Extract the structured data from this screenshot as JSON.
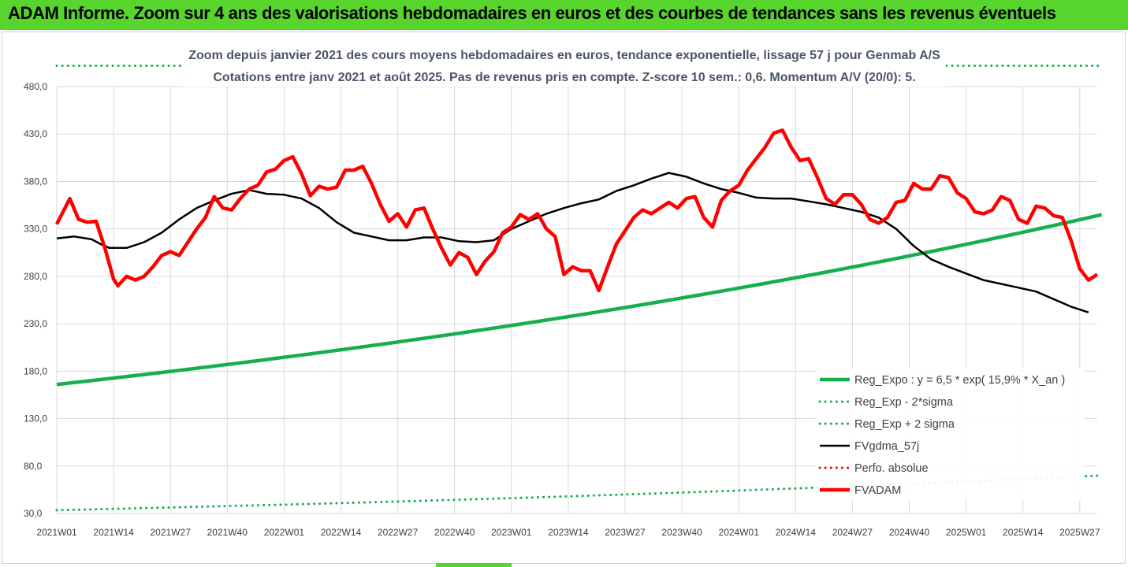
{
  "header": {
    "title": "ADAM Informe. Zoom sur 4 ans des valorisations hebdomadaires en euros et des courbes de tendances sans les revenus éventuels"
  },
  "colors": {
    "header_bg": "#58d52c",
    "series_price": "#ff0000",
    "series_smooth": "#000000",
    "series_reg": "#14b04c"
  },
  "chart_data": {
    "type": "line",
    "title_lines": [
      "Zoom depuis janvier 2021 des cours moyens hebdomadaires en euros, tendance exponentielle, lissage 57 j pour Genmab A/S",
      "Cotations entre janv 2021 et août 2025.  Pas de revenus pris en compte. Z-score 10 sem.: 0,6. Momentum A/V (20/0): 5."
    ],
    "x_ticks": [
      "2021W01",
      "2021W14",
      "2021W27",
      "2021W40",
      "2022W01",
      "2022W14",
      "2022W27",
      "2022W40",
      "2023W01",
      "2023W14",
      "2023W27",
      "2023W40",
      "2024W01",
      "2024W14",
      "2024W27",
      "2024W40",
      "2025W01",
      "2025W14",
      "2025W27"
    ],
    "y_ticks": [
      "30,0",
      "80,0",
      "130,0",
      "180,0",
      "230,0",
      "280,0",
      "330,0",
      "380,0",
      "430,0",
      "480,0"
    ],
    "ylim": [
      30,
      480
    ],
    "grid": true,
    "legend_position": "right",
    "series": [
      {
        "name": "Reg_Expo : y = 6,5 * exp( 15,9% * X_an )",
        "style": "solid-thick",
        "color": "#14b04c",
        "anchors": [
          [
            0,
            166
          ],
          [
            239,
            345
          ]
        ]
      },
      {
        "name": "Reg_Exp - 2*sigma",
        "style": "dotted",
        "color": "#14b04c",
        "anchors": [
          [
            0,
            33.5
          ],
          [
            239,
            70
          ]
        ]
      },
      {
        "name": "Reg_Exp + 2 sigma",
        "style": "dotted",
        "color": "#14b04c",
        "anchors": [
          [
            0,
            502
          ],
          [
            239,
            502
          ]
        ]
      },
      {
        "name": "FVgdma_57j",
        "style": "solid",
        "color": "#000000",
        "points": [
          [
            0,
            320
          ],
          [
            4,
            322
          ],
          [
            8,
            319
          ],
          [
            10,
            314
          ],
          [
            12,
            310
          ],
          [
            16,
            310
          ],
          [
            20,
            316
          ],
          [
            24,
            326
          ],
          [
            28,
            340
          ],
          [
            32,
            352
          ],
          [
            36,
            360
          ],
          [
            40,
            367
          ],
          [
            44,
            371
          ],
          [
            46,
            369
          ],
          [
            48,
            367
          ],
          [
            52,
            366
          ],
          [
            56,
            362
          ],
          [
            60,
            352
          ],
          [
            64,
            337
          ],
          [
            68,
            326
          ],
          [
            72,
            322
          ],
          [
            76,
            318
          ],
          [
            80,
            318
          ],
          [
            84,
            321
          ],
          [
            88,
            321
          ],
          [
            92,
            317
          ],
          [
            96,
            316
          ],
          [
            100,
            318
          ],
          [
            104,
            330
          ],
          [
            108,
            338
          ],
          [
            112,
            346
          ],
          [
            116,
            352
          ],
          [
            120,
            357
          ],
          [
            124,
            361
          ],
          [
            128,
            370
          ],
          [
            132,
            376
          ],
          [
            136,
            383
          ],
          [
            140,
            389
          ],
          [
            144,
            385
          ],
          [
            148,
            378
          ],
          [
            152,
            372
          ],
          [
            156,
            368
          ],
          [
            160,
            363
          ],
          [
            164,
            362
          ],
          [
            168,
            362
          ],
          [
            172,
            359
          ],
          [
            176,
            356
          ],
          [
            180,
            352
          ],
          [
            184,
            348
          ],
          [
            188,
            342
          ],
          [
            192,
            330
          ],
          [
            196,
            312
          ],
          [
            200,
            298
          ],
          [
            204,
            290
          ],
          [
            208,
            283
          ],
          [
            212,
            276
          ],
          [
            216,
            272
          ],
          [
            220,
            268
          ],
          [
            224,
            264
          ],
          [
            228,
            256
          ],
          [
            232,
            248
          ],
          [
            236,
            242
          ],
          [
            240,
            234
          ],
          [
            244,
            226
          ],
          [
            248,
            218
          ],
          [
            252,
            212
          ],
          [
            256,
            206
          ],
          [
            260,
            202
          ],
          [
            264,
            200
          ],
          [
            268,
            194
          ],
          [
            272,
            189
          ],
          [
            276,
            188
          ],
          [
            280,
            188
          ],
          [
            284,
            192
          ],
          [
            288,
            191
          ],
          [
            292,
            195
          ]
        ]
      },
      {
        "name": "Perfo. absolue",
        "style": "dotted",
        "color": "#ff0000",
        "points": []
      },
      {
        "name": "FVADAM",
        "style": "solid-thick",
        "color": "#ff0000",
        "points": [
          [
            0,
            335
          ],
          [
            3,
            362
          ],
          [
            5,
            340
          ],
          [
            7,
            337
          ],
          [
            9,
            338
          ],
          [
            11,
            310
          ],
          [
            13,
            277
          ],
          [
            14,
            270
          ],
          [
            16,
            280
          ],
          [
            18,
            276
          ],
          [
            20,
            280
          ],
          [
            22,
            290
          ],
          [
            24,
            302
          ],
          [
            26,
            306
          ],
          [
            28,
            302
          ],
          [
            30,
            316
          ],
          [
            32,
            330
          ],
          [
            34,
            342
          ],
          [
            36,
            364
          ],
          [
            38,
            352
          ],
          [
            40,
            350
          ],
          [
            42,
            362
          ],
          [
            44,
            372
          ],
          [
            46,
            376
          ],
          [
            48,
            390
          ],
          [
            50,
            393
          ],
          [
            52,
            402
          ],
          [
            54,
            406
          ],
          [
            56,
            388
          ],
          [
            58,
            365
          ],
          [
            60,
            375
          ],
          [
            62,
            372
          ],
          [
            64,
            374
          ],
          [
            66,
            392
          ],
          [
            68,
            392
          ],
          [
            70,
            396
          ],
          [
            72,
            378
          ],
          [
            74,
            356
          ],
          [
            76,
            338
          ],
          [
            78,
            346
          ],
          [
            80,
            332
          ],
          [
            82,
            350
          ],
          [
            84,
            352
          ],
          [
            86,
            330
          ],
          [
            88,
            310
          ],
          [
            90,
            292
          ],
          [
            92,
            305
          ],
          [
            94,
            300
          ],
          [
            96,
            282
          ],
          [
            98,
            296
          ],
          [
            100,
            306
          ],
          [
            102,
            326
          ],
          [
            104,
            332
          ],
          [
            106,
            345
          ],
          [
            108,
            340
          ],
          [
            110,
            346
          ],
          [
            112,
            330
          ],
          [
            114,
            322
          ],
          [
            116,
            282
          ],
          [
            118,
            290
          ],
          [
            120,
            286
          ],
          [
            122,
            286
          ],
          [
            124,
            265
          ],
          [
            126,
            290
          ],
          [
            128,
            314
          ],
          [
            130,
            328
          ],
          [
            132,
            342
          ],
          [
            134,
            350
          ],
          [
            136,
            346
          ],
          [
            138,
            352
          ],
          [
            140,
            358
          ],
          [
            142,
            352
          ],
          [
            144,
            362
          ],
          [
            146,
            364
          ],
          [
            148,
            342
          ],
          [
            150,
            332
          ],
          [
            152,
            360
          ],
          [
            154,
            370
          ],
          [
            156,
            376
          ],
          [
            158,
            392
          ],
          [
            160,
            404
          ],
          [
            162,
            416
          ],
          [
            164,
            431
          ],
          [
            166,
            434
          ],
          [
            168,
            416
          ],
          [
            170,
            402
          ],
          [
            172,
            404
          ],
          [
            174,
            384
          ],
          [
            176,
            362
          ],
          [
            178,
            356
          ],
          [
            180,
            366
          ],
          [
            182,
            366
          ],
          [
            184,
            356
          ],
          [
            186,
            340
          ],
          [
            188,
            336
          ],
          [
            190,
            342
          ],
          [
            192,
            358
          ],
          [
            194,
            360
          ],
          [
            196,
            378
          ],
          [
            198,
            372
          ],
          [
            200,
            372
          ],
          [
            202,
            386
          ],
          [
            204,
            384
          ],
          [
            206,
            368
          ],
          [
            208,
            362
          ],
          [
            210,
            348
          ],
          [
            212,
            346
          ],
          [
            214,
            350
          ],
          [
            216,
            364
          ],
          [
            218,
            360
          ],
          [
            220,
            340
          ],
          [
            222,
            336
          ],
          [
            224,
            354
          ],
          [
            226,
            352
          ],
          [
            228,
            344
          ],
          [
            230,
            342
          ],
          [
            232,
            318
          ],
          [
            234,
            288
          ],
          [
            236,
            276
          ],
          [
            238,
            282
          ],
          [
            240,
            296
          ],
          [
            242,
            286
          ],
          [
            244,
            298
          ],
          [
            246,
            286
          ],
          [
            248,
            288
          ],
          [
            250,
            288
          ],
          [
            252,
            292
          ],
          [
            254,
            278
          ],
          [
            256,
            258
          ],
          [
            258,
            258
          ],
          [
            260,
            258
          ],
          [
            262,
            270
          ],
          [
            264,
            266
          ],
          [
            266,
            268
          ],
          [
            268,
            284
          ],
          [
            270,
            276
          ],
          [
            272,
            280
          ],
          [
            274,
            280
          ],
          [
            276,
            272
          ],
          [
            278,
            266
          ],
          [
            280,
            270
          ],
          [
            282,
            272
          ],
          [
            284,
            256
          ],
          [
            286,
            262
          ],
          [
            288,
            250
          ],
          [
            290,
            252
          ],
          [
            292,
            240
          ],
          [
            294,
            232
          ]
        ]
      }
    ]
  }
}
